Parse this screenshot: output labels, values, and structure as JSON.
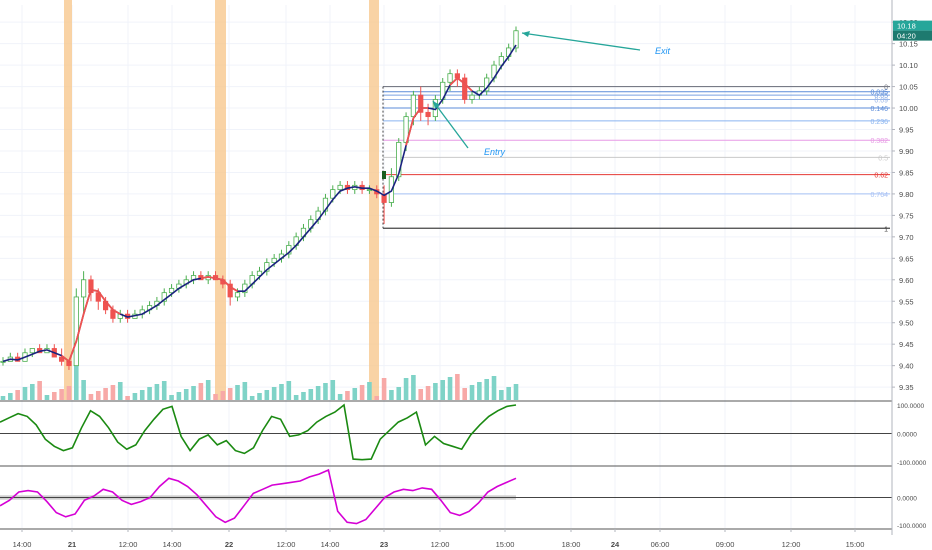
{
  "chart_data": {
    "type": "candlestick",
    "price_axis": {
      "ticks": [
        "10.20",
        "10.15",
        "10.10",
        "10.05",
        "10.00",
        "9.95",
        "9.90",
        "9.85",
        "9.80",
        "9.75",
        "9.70",
        "9.65",
        "9.60",
        "9.55",
        "9.50",
        "9.45",
        "9.40",
        "9.35"
      ],
      "tick_values": [
        10.2,
        10.15,
        10.1,
        10.05,
        10.0,
        9.95,
        9.9,
        9.85,
        9.8,
        9.75,
        9.7,
        9.65,
        9.6,
        9.55,
        9.5,
        9.45,
        9.4,
        9.35
      ],
      "range": [
        9.32,
        10.24
      ],
      "last_price": "10.18",
      "countdown": "04:20"
    },
    "time_axis": {
      "labels": [
        "14:00",
        "21",
        "12:00",
        "14:00",
        "22",
        "12:00",
        "14:00",
        "23",
        "12:00",
        "15:00",
        "18:00",
        "24",
        "06:00",
        "09:00",
        "12:00",
        "15:00"
      ]
    },
    "session_highlights": 4,
    "candles": [
      [
        9.41,
        9.42,
        9.4,
        9.41
      ],
      [
        9.41,
        9.43,
        9.41,
        9.42
      ],
      [
        9.42,
        9.43,
        9.41,
        9.41
      ],
      [
        9.41,
        9.44,
        9.41,
        9.43
      ],
      [
        9.43,
        9.44,
        9.42,
        9.44
      ],
      [
        9.44,
        9.45,
        9.43,
        9.43
      ],
      [
        9.43,
        9.45,
        9.43,
        9.44
      ],
      [
        9.44,
        9.45,
        9.42,
        9.42
      ],
      [
        9.42,
        9.44,
        9.4,
        9.41
      ],
      [
        9.41,
        9.41,
        9.39,
        9.4
      ],
      [
        9.4,
        9.58,
        9.4,
        9.56
      ],
      [
        9.56,
        9.62,
        9.52,
        9.6
      ],
      [
        9.6,
        9.61,
        9.55,
        9.57
      ],
      [
        9.57,
        9.58,
        9.53,
        9.55
      ],
      [
        9.55,
        9.56,
        9.52,
        9.53
      ],
      [
        9.53,
        9.54,
        9.5,
        9.51
      ],
      [
        9.51,
        9.53,
        9.5,
        9.52
      ],
      [
        9.52,
        9.53,
        9.5,
        9.51
      ],
      [
        9.51,
        9.53,
        9.51,
        9.52
      ],
      [
        9.52,
        9.54,
        9.51,
        9.53
      ],
      [
        9.53,
        9.55,
        9.52,
        9.54
      ],
      [
        9.54,
        9.56,
        9.53,
        9.55
      ],
      [
        9.55,
        9.58,
        9.54,
        9.57
      ],
      [
        9.57,
        9.59,
        9.56,
        9.58
      ],
      [
        9.58,
        9.6,
        9.57,
        9.59
      ],
      [
        9.59,
        9.61,
        9.58,
        9.6
      ],
      [
        9.6,
        9.62,
        9.59,
        9.61
      ],
      [
        9.61,
        9.62,
        9.6,
        9.6
      ],
      [
        9.6,
        9.62,
        9.59,
        9.61
      ],
      [
        9.61,
        9.62,
        9.6,
        9.6
      ],
      [
        9.6,
        9.61,
        9.58,
        9.59
      ],
      [
        9.59,
        9.6,
        9.54,
        9.56
      ],
      [
        9.56,
        9.58,
        9.55,
        9.57
      ],
      [
        9.57,
        9.6,
        9.56,
        9.59
      ],
      [
        9.59,
        9.62,
        9.58,
        9.61
      ],
      [
        9.61,
        9.63,
        9.6,
        9.62
      ],
      [
        9.62,
        9.65,
        9.61,
        9.64
      ],
      [
        9.64,
        9.66,
        9.63,
        9.65
      ],
      [
        9.65,
        9.67,
        9.64,
        9.66
      ],
      [
        9.66,
        9.69,
        9.65,
        9.68
      ],
      [
        9.68,
        9.71,
        9.67,
        9.7
      ],
      [
        9.7,
        9.73,
        9.69,
        9.72
      ],
      [
        9.72,
        9.75,
        9.71,
        9.74
      ],
      [
        9.74,
        9.77,
        9.73,
        9.76
      ],
      [
        9.76,
        9.8,
        9.75,
        9.79
      ],
      [
        9.79,
        9.82,
        9.78,
        9.81
      ],
      [
        9.81,
        9.83,
        9.8,
        9.82
      ],
      [
        9.82,
        9.83,
        9.8,
        9.81
      ],
      [
        9.81,
        9.83,
        9.8,
        9.82
      ],
      [
        9.82,
        9.83,
        9.8,
        9.81
      ],
      [
        9.81,
        9.82,
        9.8,
        9.81
      ],
      [
        9.81,
        9.82,
        9.79,
        9.8
      ],
      [
        9.8,
        9.82,
        9.73,
        9.78
      ],
      [
        9.78,
        9.86,
        9.77,
        9.84
      ],
      [
        9.84,
        9.93,
        9.83,
        9.92
      ],
      [
        9.92,
        9.99,
        9.9,
        9.98
      ],
      [
        9.98,
        10.04,
        9.96,
        10.03
      ],
      [
        10.03,
        10.05,
        9.97,
        9.99
      ],
      [
        9.99,
        10.01,
        9.96,
        9.98
      ],
      [
        9.98,
        10.03,
        9.97,
        10.02
      ],
      [
        10.02,
        10.07,
        10.01,
        10.06
      ],
      [
        10.06,
        10.09,
        10.04,
        10.08
      ],
      [
        10.08,
        10.09,
        10.05,
        10.07
      ],
      [
        10.07,
        10.08,
        10.01,
        10.02
      ],
      [
        10.02,
        10.04,
        10.01,
        10.03
      ],
      [
        10.03,
        10.05,
        10.02,
        10.04
      ],
      [
        10.04,
        10.08,
        10.03,
        10.07
      ],
      [
        10.07,
        10.11,
        10.06,
        10.1
      ],
      [
        10.1,
        10.13,
        10.09,
        10.12
      ],
      [
        10.12,
        10.15,
        10.11,
        10.14
      ],
      [
        10.14,
        10.19,
        10.13,
        10.18
      ]
    ],
    "fibonacci": {
      "levels": [
        {
          "label": "0",
          "price": 10.05,
          "color": "#787b86"
        },
        {
          "label": "0.035",
          "price": 10.038,
          "color": "#5b8bd8"
        },
        {
          "label": "0.05",
          "price": 10.03,
          "color": "#7aa1e0"
        },
        {
          "label": "0.09",
          "price": 10.02,
          "color": "#9bb7e8"
        },
        {
          "label": "0.146",
          "price": 10.0,
          "color": "#5b8bd8"
        },
        {
          "label": "0.236",
          "price": 9.97,
          "color": "#8ab4f0"
        },
        {
          "label": "0.382",
          "price": 9.925,
          "color": "#e79ae5"
        },
        {
          "label": "0.5",
          "price": 9.885,
          "color": "#c9c9c9"
        },
        {
          "label": "0.62",
          "price": 9.845,
          "color": "#e53935"
        },
        {
          "label": "0.764",
          "price": 9.8,
          "color": "#a7c1f5"
        },
        {
          "label": "1",
          "price": 9.72,
          "color": "#444444"
        }
      ]
    },
    "annotations": [
      {
        "text": "Exit",
        "price": 10.18
      },
      {
        "text": "Entry",
        "price": 10.0
      }
    ],
    "oscillator1": {
      "ticks": [
        "100.0000",
        "0.0000",
        "-100.0000"
      ],
      "values": [
        40,
        55,
        70,
        60,
        30,
        -20,
        -45,
        -60,
        -50,
        20,
        80,
        60,
        20,
        -30,
        -55,
        -40,
        10,
        50,
        85,
        95,
        -10,
        -60,
        -20,
        -5,
        -40,
        -25,
        -60,
        -70,
        -50,
        10,
        60,
        50,
        -10,
        -5,
        10,
        40,
        60,
        75,
        100,
        -90,
        -92,
        -90,
        -20,
        10,
        40,
        55,
        75,
        -40,
        -10,
        -35,
        -45,
        -55,
        -5,
        30,
        60,
        80,
        95,
        100
      ]
    },
    "oscillator2": {
      "ticks": [
        "0.0000",
        "-100.0000"
      ],
      "values": [
        -30,
        -10,
        20,
        25,
        20,
        -15,
        -55,
        -70,
        -60,
        -10,
        5,
        30,
        20,
        -10,
        -25,
        -15,
        0,
        40,
        70,
        60,
        40,
        10,
        -30,
        -70,
        -90,
        -75,
        -30,
        15,
        30,
        45,
        50,
        55,
        60,
        75,
        85,
        100,
        -50,
        -90,
        -95,
        -80,
        -40,
        0,
        20,
        30,
        25,
        35,
        30,
        -10,
        -55,
        -65,
        -50,
        -20,
        20,
        40,
        55,
        70
      ]
    }
  }
}
